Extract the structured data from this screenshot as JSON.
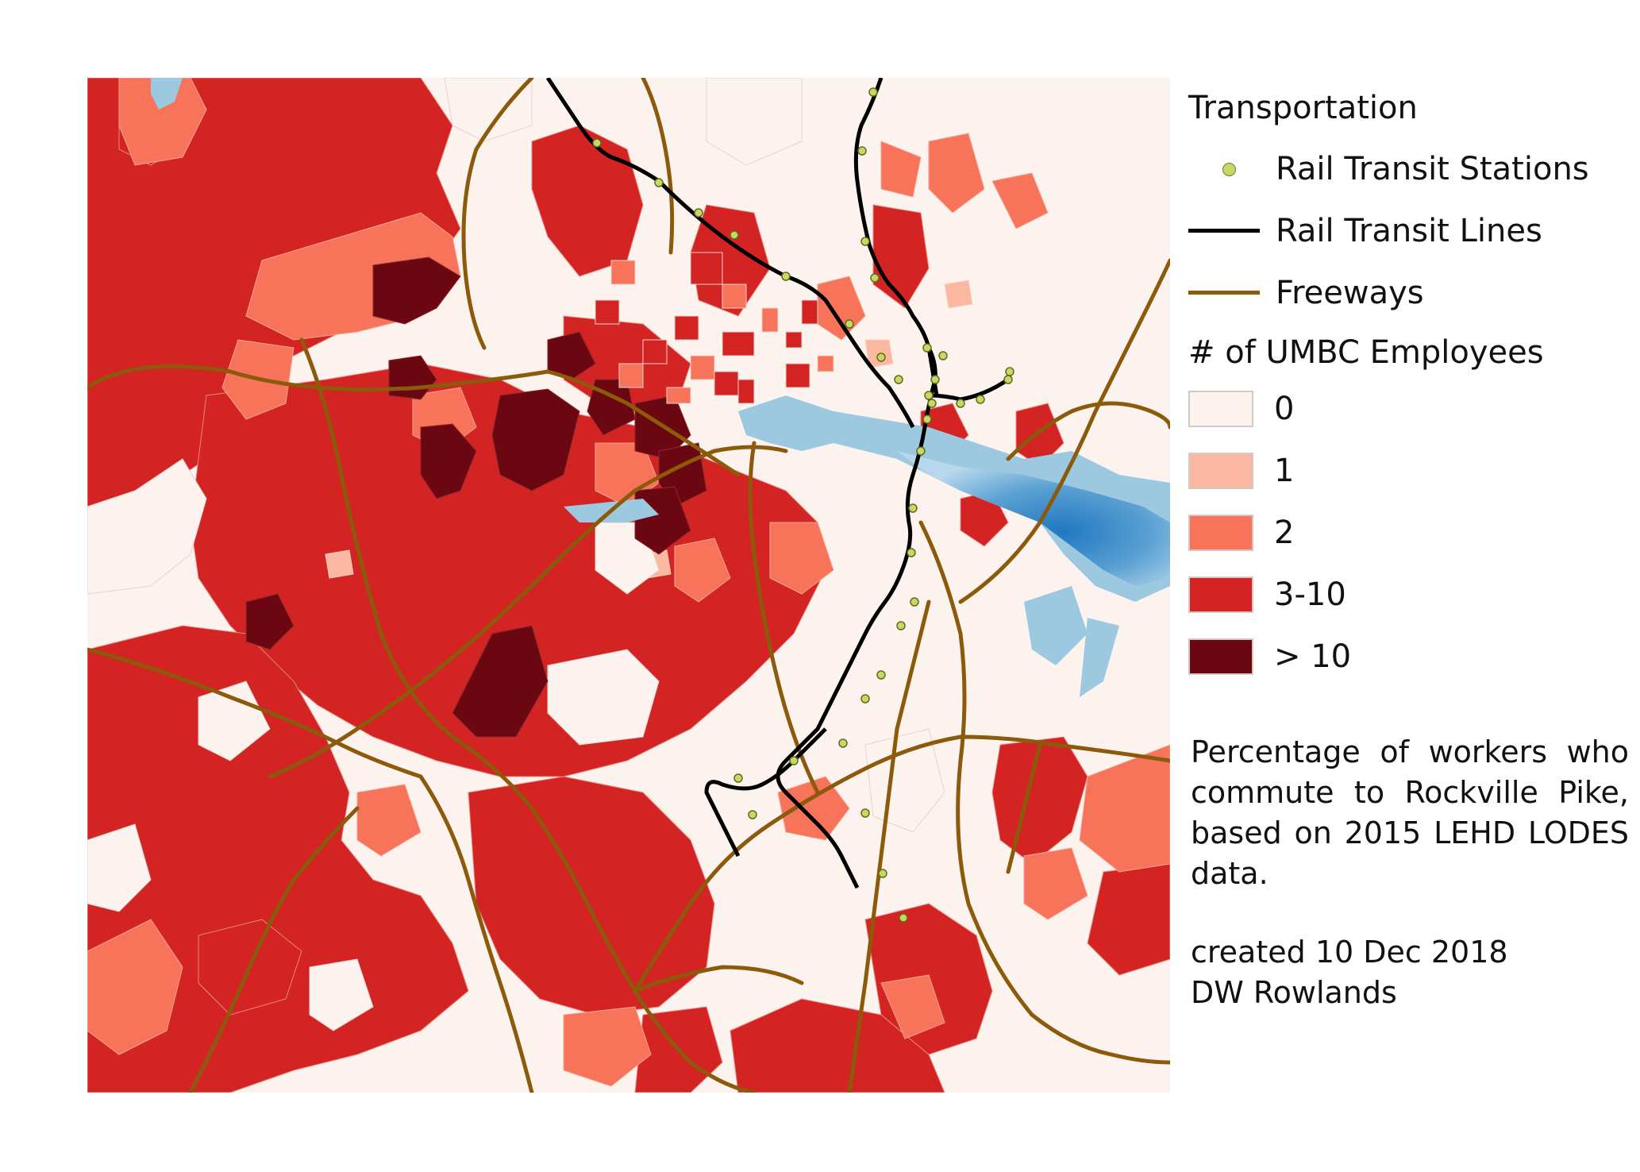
{
  "legend": {
    "transportation_heading": "Transportation",
    "transport_items": [
      {
        "label": "Rail Transit Stations",
        "icon": "station-dot-icon",
        "color": "#c8d862"
      },
      {
        "label": "Rail Transit Lines",
        "icon": "rail-line-icon",
        "color": "#000000"
      },
      {
        "label": "Freeways",
        "icon": "freeway-line-icon",
        "color": "#8b5a0b"
      }
    ],
    "employees_heading": "# of UMBC Employees",
    "classes": [
      {
        "label": "0",
        "color": "#fdf3ee"
      },
      {
        "label": "1",
        "color": "#fbb8a1"
      },
      {
        "label": "2",
        "color": "#f7735a"
      },
      {
        "label": "3-10",
        "color": "#d32323"
      },
      {
        "label": "> 10",
        "color": "#6b0710"
      }
    ]
  },
  "note": "Percentage of workers who commute to Rockville Pike, based on 2015 LEHD LODES data.",
  "credit": {
    "line1": "created 10 Dec 2018",
    "line2": "DW Rowlands"
  },
  "map_colors": {
    "water": "#9cc8e0",
    "water_deep": "#1f78c0",
    "freeway": "#8b5a0b",
    "rail": "#000000",
    "station": "#c8d862"
  }
}
